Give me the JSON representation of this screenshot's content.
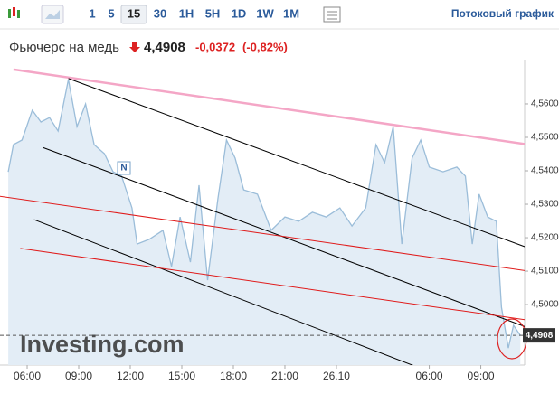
{
  "toolbar": {
    "intervals": [
      "1",
      "5",
      "15",
      "30",
      "1H",
      "5H",
      "1D",
      "1W",
      "1M"
    ],
    "active_index": 2,
    "streaming": "Потоковый график"
  },
  "header": {
    "name": "Фьючерс на медь",
    "price": "4,4908",
    "change": "-0,0372",
    "change_pct": "(-0,82%)"
  },
  "chart_data": {
    "type": "area",
    "logo": "Investing.com",
    "annotation": "N",
    "color": "#9bbdd9",
    "fill": "#e3edf6",
    "x": [
      -1.1,
      -0.8,
      -0.3,
      0.3,
      0.8,
      1.3,
      1.8,
      2.4,
      2.9,
      3.4,
      3.9,
      4.5,
      5.0,
      5.5,
      6.1,
      6.4,
      7.1,
      7.9,
      8.4,
      8.9,
      9.5,
      10.0,
      10.5,
      11.1,
      11.6,
      12.1,
      12.6,
      13.4,
      14.2,
      15.0,
      15.8,
      16.6,
      17.4,
      18.2,
      18.9,
      19.7,
      20.3,
      20.8,
      21.3,
      21.8,
      22.4,
      22.9,
      23.4,
      24.2,
      25.0,
      25.5,
      25.9,
      26.3,
      26.8,
      27.3,
      27.6,
      28.0,
      28.3,
      28.7
    ],
    "values": [
      4.5397,
      4.5478,
      4.5492,
      4.5581,
      4.5546,
      4.5559,
      4.5519,
      4.5673,
      4.5532,
      4.56,
      4.5478,
      4.5451,
      4.5397,
      4.5384,
      4.5289,
      4.5181,
      4.5195,
      4.5222,
      4.5114,
      4.5262,
      4.5127,
      4.5357,
      4.5073,
      4.5316,
      4.5492,
      4.5438,
      4.5343,
      4.533,
      4.5222,
      4.5262,
      4.5249,
      4.5276,
      4.5262,
      4.5289,
      4.5235,
      4.5289,
      4.5478,
      4.5424,
      4.5532,
      4.5181,
      4.5438,
      4.5492,
      4.5411,
      4.5397,
      4.5411,
      4.5384,
      4.5181,
      4.533,
      4.5262,
      4.5249,
      4.4992,
      4.487,
      4.4938,
      4.4908
    ],
    "last": 4.4908,
    "xlim": [
      -1.58,
      28.95
    ],
    "ylim": [
      4.483,
      4.5708
    ],
    "xticks": [
      {
        "value": 0,
        "label": "06:00"
      },
      {
        "value": 3,
        "label": "09:00"
      },
      {
        "value": 6,
        "label": "12:00"
      },
      {
        "value": 9,
        "label": "15:00"
      },
      {
        "value": 12,
        "label": "18:00"
      },
      {
        "value": 15,
        "label": "21:00"
      },
      {
        "value": 18,
        "label": "26.10"
      },
      {
        "value": 23.4,
        "label": "06:00"
      },
      {
        "value": 26.4,
        "label": "09:00"
      }
    ],
    "yticks": [
      {
        "value": 4.56,
        "label": "4,5600"
      },
      {
        "value": 4.55,
        "label": "4,5500"
      },
      {
        "value": 4.54,
        "label": "4,5400"
      },
      {
        "value": 4.53,
        "label": "4,5300"
      },
      {
        "value": 4.52,
        "label": "4,5200"
      },
      {
        "value": 4.51,
        "label": "4,5100"
      },
      {
        "value": 4.5,
        "label": "4,5000"
      }
    ],
    "trendlines": [
      {
        "color": "#f4a6c6",
        "x": [
          -0.8,
          29.5
        ],
        "y": [
          4.5703,
          4.5476
        ]
      },
      {
        "color": "#000000",
        "x": [
          2.4,
          29.7
        ],
        "y": [
          4.5676,
          4.5159
        ]
      },
      {
        "color": "#000000",
        "x": [
          0.9,
          29.5
        ],
        "y": [
          4.547,
          4.4924
        ]
      },
      {
        "color": "#000000",
        "x": [
          0.4,
          25.3
        ],
        "y": [
          4.5254,
          4.4762
        ]
      },
      {
        "color": "#e01b1b",
        "x": [
          -1.6,
          29.2
        ],
        "y": [
          4.5324,
          4.51
        ]
      },
      {
        "color": "#e01b1b",
        "x": [
          -0.4,
          29.5
        ],
        "y": [
          4.5168,
          4.4951
        ]
      }
    ]
  }
}
